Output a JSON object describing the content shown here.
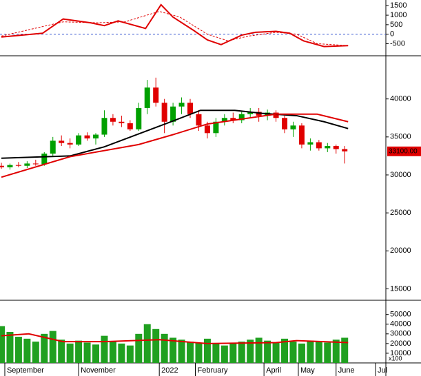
{
  "chart_data": [
    {
      "type": "line",
      "ylim": [
        -1100,
        1800
      ],
      "yticks": [
        1500,
        1000,
        500,
        0,
        -500
      ],
      "reference_line": 0,
      "reference_color": "#3050d0",
      "xlim": [
        0,
        224
      ],
      "series": [
        {
          "color": "#e00000",
          "dash": false,
          "x": [
            0,
            24,
            36,
            52,
            60,
            68,
            84,
            93,
            100,
            112,
            120,
            128,
            140,
            148,
            160,
            168,
            176,
            188,
            202
          ],
          "values": [
            -150,
            50,
            800,
            600,
            450,
            700,
            300,
            1550,
            900,
            200,
            -300,
            -550,
            -50,
            100,
            150,
            50,
            -350,
            -650,
            -600
          ]
        },
        {
          "color": "#e00000",
          "dash": true,
          "x": [
            0,
            36,
            56,
            72,
            92,
            104,
            120,
            132,
            144,
            160,
            172,
            184,
            202
          ],
          "values": [
            -100,
            650,
            600,
            650,
            1200,
            900,
            0,
            -350,
            -100,
            100,
            0,
            -500,
            -600
          ]
        }
      ]
    },
    {
      "type": "candlestick",
      "ylim": [
        13500,
        45500
      ],
      "yticks": [
        40000,
        35000,
        30000,
        25000,
        20000,
        15000
      ],
      "xlim": [
        0,
        224
      ],
      "up_color": "#00a000",
      "down_color": "#e00000",
      "x": [
        0,
        5,
        10,
        15,
        20,
        25,
        30,
        35,
        40,
        45,
        50,
        55,
        60,
        65,
        70,
        75,
        80,
        85,
        90,
        95,
        100,
        105,
        110,
        115,
        120,
        125,
        130,
        135,
        140,
        145,
        150,
        155,
        160,
        165,
        170,
        175,
        180,
        185,
        190,
        195,
        200
      ],
      "open": [
        31200,
        31000,
        31300,
        31200,
        31500,
        31400,
        32800,
        34500,
        34200,
        34000,
        35200,
        34800,
        35300,
        37500,
        37000,
        36800,
        36000,
        38800,
        41500,
        39500,
        37000,
        39000,
        39500,
        38000,
        36500,
        35500,
        37000,
        37500,
        37200,
        38000,
        38300,
        37800,
        38200,
        37500,
        36000,
        36500,
        34000,
        34300,
        33500,
        33800,
        33400
      ],
      "high": [
        31600,
        31500,
        31700,
        31800,
        32000,
        33000,
        35000,
        35200,
        34800,
        35500,
        35600,
        35500,
        38500,
        38000,
        37800,
        37200,
        39500,
        42500,
        42800,
        40000,
        39500,
        40200,
        40000,
        38500,
        37000,
        37500,
        38000,
        38200,
        38300,
        38800,
        38800,
        38600,
        38500,
        37800,
        37000,
        36800,
        34800,
        34600,
        34200,
        34000,
        33800
      ],
      "low": [
        30800,
        30700,
        31000,
        30900,
        31200,
        31200,
        32500,
        33800,
        33500,
        33800,
        34500,
        34000,
        35000,
        36500,
        36300,
        35800,
        35800,
        38000,
        39000,
        35500,
        36500,
        38000,
        37500,
        35800,
        34800,
        35000,
        36500,
        36800,
        36800,
        37500,
        37000,
        37200,
        37000,
        35500,
        35000,
        33500,
        33200,
        33200,
        33000,
        32800,
        31500
      ],
      "close": [
        31000,
        31300,
        31200,
        31500,
        31400,
        32800,
        34500,
        34200,
        34000,
        35200,
        34800,
        35300,
        37500,
        37000,
        36800,
        36000,
        38800,
        41500,
        39500,
        37000,
        39000,
        39500,
        38000,
        36500,
        35500,
        37000,
        37500,
        37200,
        38000,
        38300,
        37800,
        38200,
        37500,
        36000,
        36500,
        34000,
        34300,
        33500,
        33800,
        33400,
        33100
      ],
      "series": [
        {
          "color": "#000000",
          "x": [
            0,
            40,
            60,
            100,
            116,
            136,
            152,
            172,
            188,
            202
          ],
          "values": [
            32200,
            32500,
            33700,
            37100,
            38500,
            38500,
            38100,
            37800,
            37000,
            36100
          ]
        },
        {
          "color": "#e00000",
          "x": [
            0,
            40,
            80,
            100,
            120,
            160,
            184,
            202
          ],
          "values": [
            29700,
            32400,
            34000,
            35300,
            36700,
            38000,
            38000,
            37000
          ]
        }
      ],
      "last_value": 33100,
      "last_value_label": "33100.00"
    },
    {
      "type": "bar",
      "ylim": [
        0,
        64000
      ],
      "yticks": [
        50000,
        40000,
        30000,
        20000,
        10000
      ],
      "xlim": [
        0,
        224
      ],
      "color": "#20a020",
      "x": [
        0,
        5,
        10,
        15,
        20,
        25,
        30,
        35,
        40,
        45,
        50,
        55,
        60,
        65,
        70,
        75,
        80,
        85,
        90,
        95,
        100,
        105,
        110,
        115,
        120,
        125,
        130,
        135,
        140,
        145,
        150,
        155,
        160,
        165,
        170,
        175,
        180,
        185,
        190,
        195,
        200
      ],
      "values": [
        38000,
        32000,
        27000,
        25000,
        22000,
        30000,
        33000,
        24000,
        20000,
        23000,
        21000,
        19000,
        28000,
        22000,
        20000,
        18000,
        30000,
        40000,
        35000,
        30000,
        26000,
        24000,
        22000,
        21000,
        25000,
        20000,
        18000,
        20000,
        22000,
        24000,
        26000,
        23000,
        21000,
        25000,
        22000,
        20000,
        23000,
        22000,
        21000,
        24000,
        26000
      ],
      "series": [
        {
          "color": "#e00000",
          "x": [
            0,
            16,
            36,
            60,
            92,
            120,
            160,
            172,
            202
          ],
          "values": [
            28000,
            30000,
            22000,
            22000,
            24000,
            20000,
            21000,
            23000,
            21000
          ]
        }
      ],
      "xticks": [
        {
          "value": 2,
          "label": "September"
        },
        {
          "value": 45,
          "label": "November"
        },
        {
          "value": 92,
          "label": "2022"
        },
        {
          "value": 113,
          "label": "February"
        },
        {
          "value": 153,
          "label": "April"
        },
        {
          "value": 173,
          "label": "May"
        },
        {
          "value": 195,
          "label": "June"
        },
        {
          "value": 218,
          "label": "Jul"
        }
      ],
      "unit_label": "x100"
    }
  ]
}
